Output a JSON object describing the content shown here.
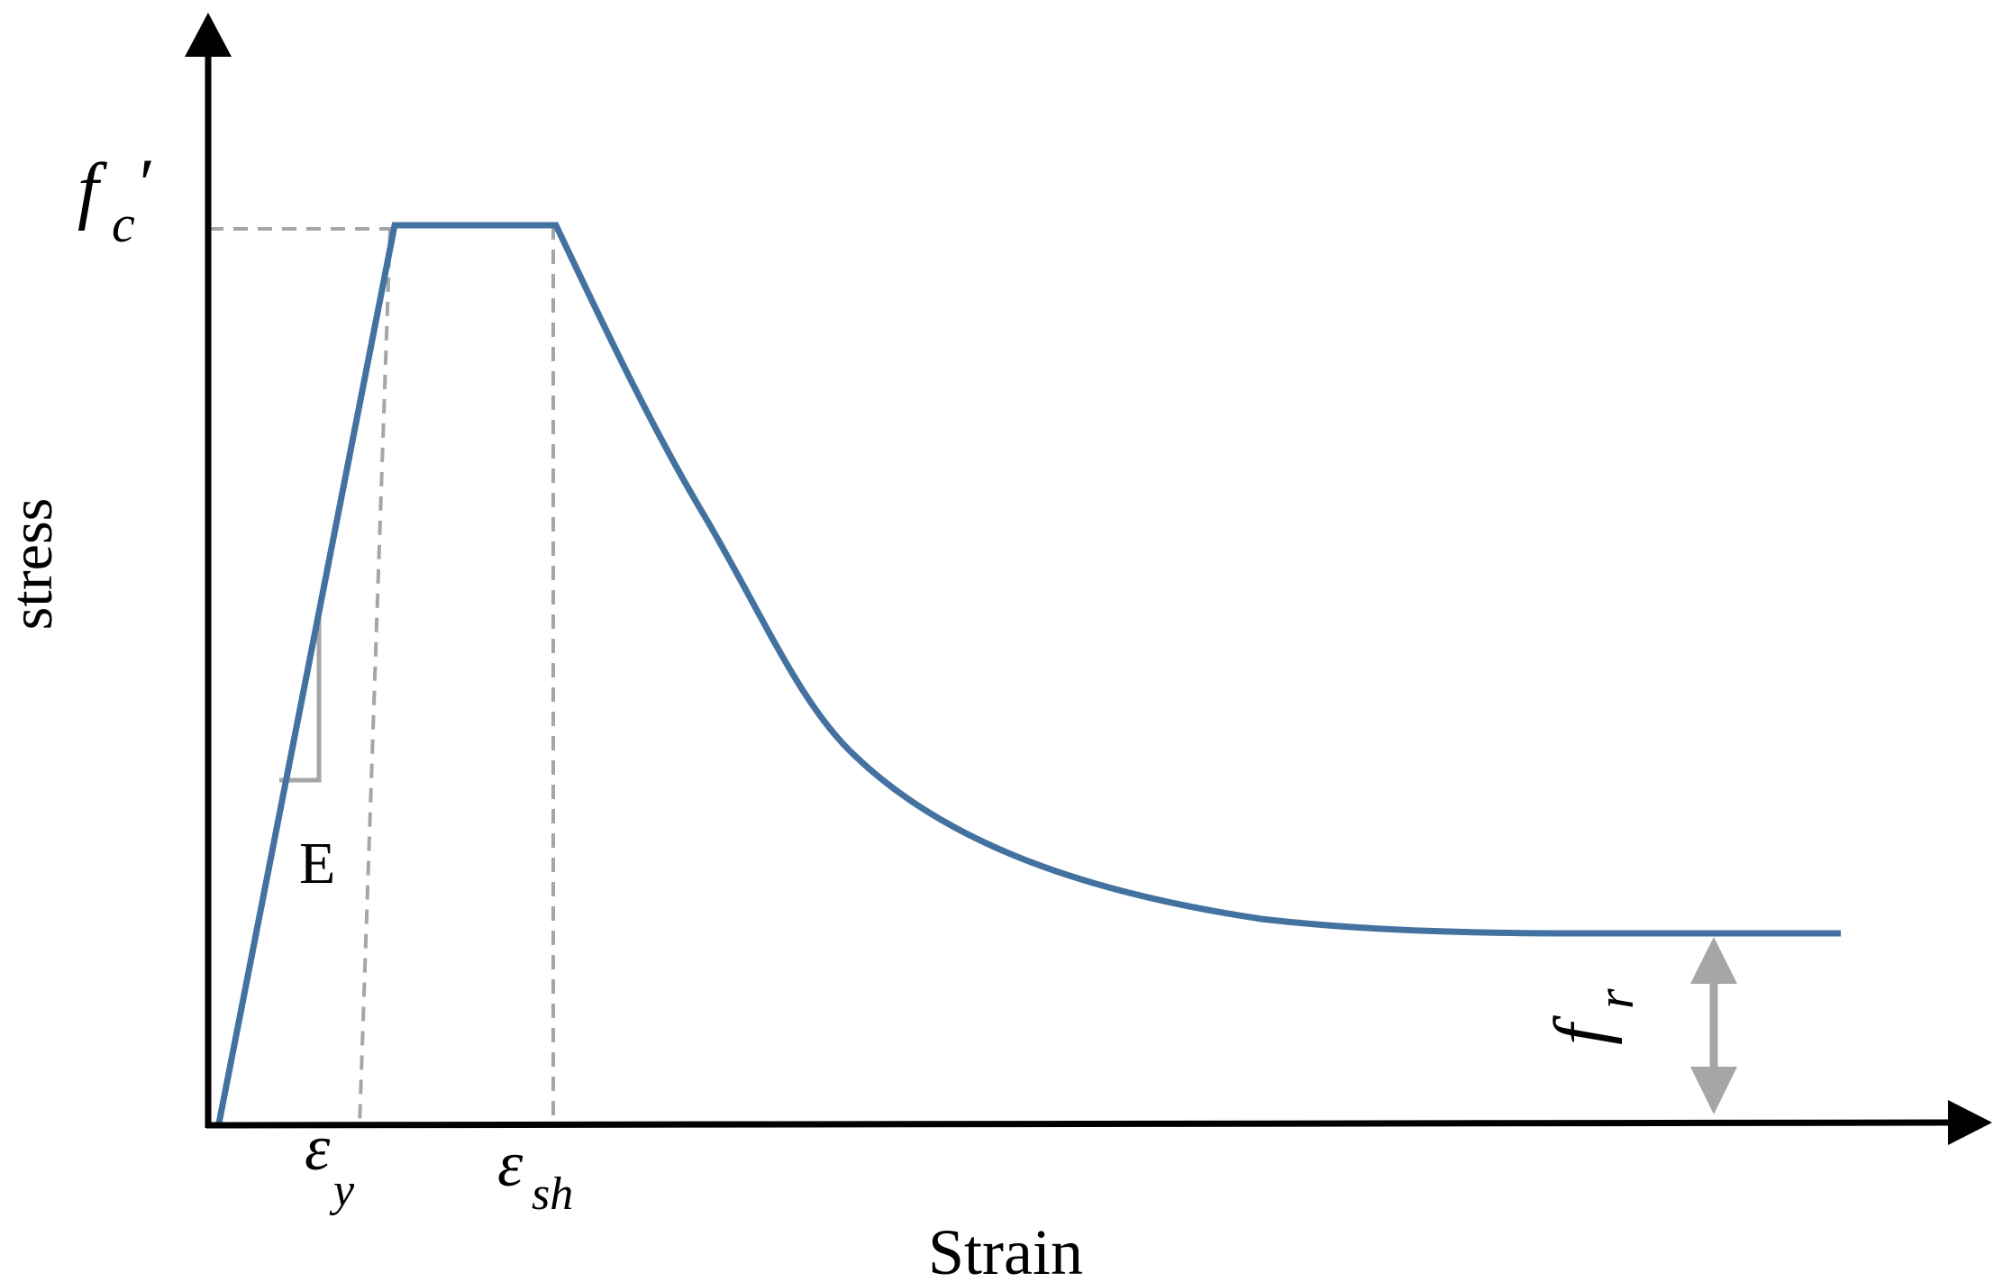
{
  "axes": {
    "y_label": "stress",
    "x_label": "Strain"
  },
  "labels": {
    "fc_main": "f",
    "fc_sub": "c",
    "fc_prime": "′",
    "modulus": "E",
    "eps_y_main": "ε",
    "eps_y_sub": "y",
    "eps_sh_main": "ε",
    "eps_sh_sub": "sh",
    "fr_main": "f",
    "fr_sub": "r"
  },
  "colors": {
    "curve": "#4472a0",
    "axis": "#000000",
    "guide": "#a6a6a6",
    "residual_arrow": "#a6a6a6"
  },
  "icons": {
    "y_axis_head": "arrow-up-icon",
    "x_axis_head": "arrow-right-icon",
    "residual_arrow": "double-arrow-icon"
  }
}
